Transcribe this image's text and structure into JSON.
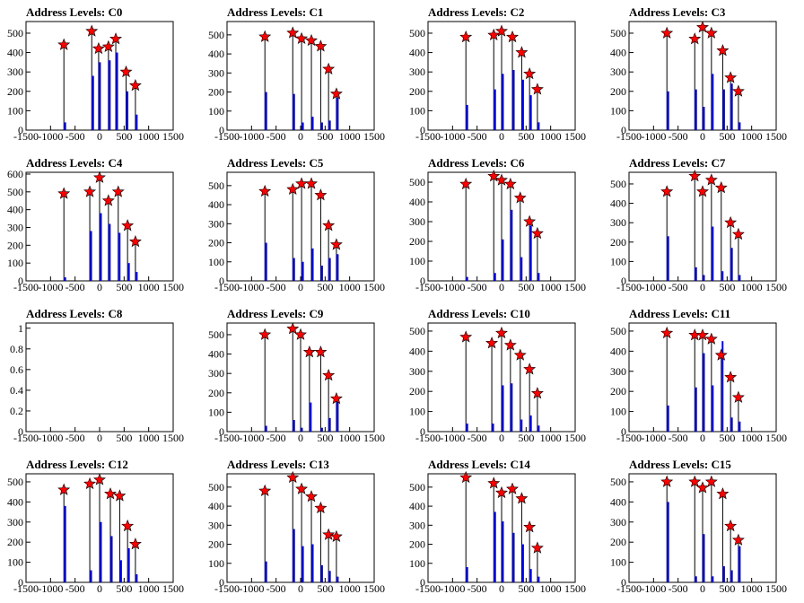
{
  "title_prefix": "Address Levels: ",
  "colors": {
    "bar": "#0000ff",
    "spike": "#000000",
    "star": "#ff0000",
    "star_edge": "#000000",
    "axis": "#000000"
  },
  "chart_data": [
    {
      "title": "Address Levels: C0",
      "type": "bar",
      "xlim": [
        -1500,
        1500
      ],
      "ylim": [
        0,
        560
      ],
      "xticks": [
        -1500,
        -1000,
        -500,
        0,
        500,
        1000,
        1500
      ],
      "yticks": [
        0,
        100,
        200,
        300,
        400,
        500
      ],
      "x": [
        -728,
        -160,
        -20,
        180,
        330,
        540,
        730
      ],
      "peaks": [
        440,
        510,
        420,
        430,
        470,
        300,
        230
      ],
      "bars": [
        40,
        280,
        350,
        360,
        400,
        200,
        80
      ]
    },
    {
      "title": "Address Levels: C1",
      "type": "bar",
      "xlim": [
        -1500,
        1500
      ],
      "ylim": [
        0,
        570
      ],
      "xticks": [
        -1500,
        -1000,
        -500,
        0,
        500,
        1000,
        1500
      ],
      "yticks": [
        0,
        100,
        200,
        300,
        400,
        500
      ],
      "x": [
        -728,
        -160,
        20,
        220,
        410,
        570,
        730
      ],
      "peaks": [
        490,
        510,
        480,
        470,
        440,
        320,
        190
      ],
      "bars": [
        200,
        190,
        40,
        70,
        40,
        50,
        170
      ]
    },
    {
      "title": "Address Levels: C2",
      "type": "bar",
      "xlim": [
        -1500,
        1500
      ],
      "ylim": [
        0,
        560
      ],
      "xticks": [
        -1500,
        -1000,
        -500,
        0,
        500,
        1000,
        1500
      ],
      "yticks": [
        0,
        100,
        200,
        300,
        400,
        500
      ],
      "x": [
        -728,
        -160,
        0,
        220,
        410,
        570,
        730
      ],
      "peaks": [
        480,
        490,
        510,
        480,
        400,
        290,
        210
      ],
      "bars": [
        130,
        210,
        290,
        310,
        260,
        180,
        40
      ]
    },
    {
      "title": "Address Levels: C3",
      "type": "bar",
      "xlim": [
        -1500,
        1500
      ],
      "ylim": [
        0,
        560
      ],
      "xticks": [
        -1500,
        -1000,
        -500,
        0,
        500,
        1000,
        1500
      ],
      "yticks": [
        0,
        100,
        200,
        300,
        400,
        500
      ],
      "x": [
        -728,
        -160,
        0,
        180,
        410,
        570,
        730
      ],
      "peaks": [
        500,
        470,
        530,
        500,
        410,
        270,
        200
      ],
      "bars": [
        200,
        210,
        120,
        290,
        210,
        240,
        40
      ]
    },
    {
      "title": "Address Levels: C4",
      "type": "bar",
      "xlim": [
        -1500,
        1500
      ],
      "ylim": [
        0,
        610
      ],
      "xticks": [
        -1500,
        -1000,
        -500,
        0,
        500,
        1000,
        1500
      ],
      "yticks": [
        0,
        100,
        200,
        300,
        400,
        500,
        600
      ],
      "x": [
        -728,
        -200,
        0,
        180,
        380,
        570,
        730
      ],
      "peaks": [
        490,
        500,
        580,
        450,
        500,
        310,
        220
      ],
      "bars": [
        20,
        280,
        380,
        320,
        270,
        100,
        50
      ]
    },
    {
      "title": "Address Levels: C5",
      "type": "bar",
      "xlim": [
        -1500,
        1500
      ],
      "ylim": [
        0,
        570
      ],
      "xticks": [
        -1500,
        -1000,
        -500,
        0,
        500,
        1000,
        1500
      ],
      "yticks": [
        0,
        100,
        200,
        300,
        400,
        500
      ],
      "x": [
        -728,
        -160,
        20,
        220,
        410,
        570,
        730
      ],
      "peaks": [
        470,
        480,
        510,
        510,
        450,
        290,
        190
      ],
      "bars": [
        200,
        120,
        100,
        170,
        80,
        120,
        140
      ]
    },
    {
      "title": "Address Levels: C6",
      "type": "bar",
      "xlim": [
        -1500,
        1500
      ],
      "ylim": [
        0,
        550
      ],
      "xticks": [
        -1500,
        -1000,
        -500,
        0,
        500,
        1000,
        1500
      ],
      "yticks": [
        0,
        100,
        200,
        300,
        400,
        500
      ],
      "x": [
        -728,
        -160,
        0,
        180,
        380,
        570,
        730
      ],
      "peaks": [
        490,
        530,
        510,
        490,
        420,
        300,
        240
      ],
      "bars": [
        20,
        40,
        210,
        360,
        120,
        280,
        40
      ]
    },
    {
      "title": "Address Levels: C7",
      "type": "bar",
      "xlim": [
        -1500,
        1500
      ],
      "ylim": [
        0,
        560
      ],
      "xticks": [
        -1500,
        -1000,
        -500,
        0,
        500,
        1000,
        1500
      ],
      "yticks": [
        0,
        100,
        200,
        300,
        400,
        500
      ],
      "x": [
        -728,
        -160,
        0,
        180,
        380,
        570,
        730
      ],
      "peaks": [
        460,
        540,
        460,
        520,
        480,
        300,
        240
      ],
      "bars": [
        230,
        70,
        30,
        280,
        50,
        170,
        30
      ]
    },
    {
      "title": "Address Levels: C8",
      "type": "empty",
      "xlim": [
        -1500,
        1500
      ],
      "ylim": [
        0,
        1.05
      ],
      "xticks": [
        -1500,
        -1000,
        -500,
        0,
        500,
        1000,
        1500
      ],
      "yticks": [
        0,
        0.2,
        0.4,
        0.6,
        0.8,
        1
      ],
      "x": [],
      "peaks": [],
      "bars": []
    },
    {
      "title": "Address Levels: C9",
      "type": "bar",
      "xlim": [
        -1500,
        1500
      ],
      "ylim": [
        0,
        560
      ],
      "xticks": [
        -1500,
        -1000,
        -500,
        0,
        500,
        1000,
        1500
      ],
      "yticks": [
        0,
        100,
        200,
        300,
        400,
        500
      ],
      "x": [
        -728,
        -160,
        0,
        180,
        410,
        570,
        730
      ],
      "peaks": [
        500,
        530,
        500,
        410,
        410,
        290,
        170
      ],
      "bars": [
        30,
        60,
        20,
        150,
        20,
        70,
        160
      ]
    },
    {
      "title": "Address Levels: C10",
      "type": "bar",
      "xlim": [
        -1500,
        1500
      ],
      "ylim": [
        0,
        540
      ],
      "xticks": [
        -1500,
        -1000,
        -500,
        0,
        500,
        1000,
        1500
      ],
      "yticks": [
        0,
        100,
        200,
        300,
        400,
        500
      ],
      "x": [
        -728,
        -200,
        0,
        180,
        380,
        570,
        730
      ],
      "peaks": [
        470,
        440,
        490,
        430,
        380,
        310,
        190
      ],
      "bars": [
        40,
        40,
        230,
        240,
        60,
        80,
        30
      ]
    },
    {
      "title": "Address Levels: C11",
      "type": "bar",
      "xlim": [
        -1500,
        1500
      ],
      "ylim": [
        0,
        540
      ],
      "xticks": [
        -1500,
        -1000,
        -500,
        0,
        500,
        1000,
        1500
      ],
      "yticks": [
        0,
        100,
        200,
        300,
        400,
        500
      ],
      "x": [
        -728,
        -160,
        0,
        180,
        380,
        570,
        730
      ],
      "peaks": [
        490,
        480,
        480,
        460,
        380,
        270,
        170
      ],
      "bars": [
        130,
        220,
        390,
        230,
        450,
        70,
        50
      ]
    },
    {
      "title": "Address Levels: C12",
      "type": "bar",
      "xlim": [
        -1500,
        1500
      ],
      "ylim": [
        0,
        540
      ],
      "xticks": [
        -1500,
        -1000,
        -500,
        0,
        500,
        1000,
        1500
      ],
      "yticks": [
        0,
        100,
        200,
        300,
        400,
        500
      ],
      "x": [
        -728,
        -200,
        0,
        220,
        410,
        570,
        730
      ],
      "peaks": [
        460,
        490,
        510,
        440,
        430,
        280,
        190
      ],
      "bars": [
        380,
        60,
        300,
        230,
        110,
        170,
        40
      ]
    },
    {
      "title": "Address Levels: C13",
      "type": "bar",
      "xlim": [
        -1500,
        1500
      ],
      "ylim": [
        0,
        570
      ],
      "xticks": [
        -1500,
        -1000,
        -500,
        0,
        500,
        1000,
        1500
      ],
      "yticks": [
        0,
        100,
        200,
        300,
        400,
        500
      ],
      "x": [
        -728,
        -160,
        20,
        220,
        410,
        570,
        730
      ],
      "peaks": [
        480,
        550,
        490,
        450,
        390,
        250,
        240
      ],
      "bars": [
        110,
        280,
        190,
        200,
        90,
        60,
        30
      ]
    },
    {
      "title": "Address Levels: C14",
      "type": "bar",
      "xlim": [
        -1500,
        1500
      ],
      "ylim": [
        0,
        570
      ],
      "xticks": [
        -1500,
        -1000,
        -500,
        0,
        500,
        1000,
        1500
      ],
      "yticks": [
        0,
        100,
        200,
        300,
        400,
        500
      ],
      "x": [
        -728,
        -160,
        0,
        220,
        410,
        570,
        730
      ],
      "peaks": [
        550,
        520,
        470,
        490,
        440,
        290,
        180
      ],
      "bars": [
        80,
        370,
        320,
        260,
        200,
        70,
        30
      ]
    },
    {
      "title": "Address Levels: C15",
      "type": "bar",
      "xlim": [
        -1500,
        1500
      ],
      "ylim": [
        0,
        540
      ],
      "xticks": [
        -1500,
        -1000,
        -500,
        0,
        500,
        1000,
        1500
      ],
      "yticks": [
        0,
        100,
        200,
        300,
        400,
        500
      ],
      "x": [
        -728,
        -160,
        0,
        180,
        410,
        570,
        730
      ],
      "peaks": [
        500,
        500,
        470,
        500,
        440,
        280,
        210
      ],
      "bars": [
        400,
        30,
        240,
        30,
        80,
        60,
        180
      ]
    }
  ]
}
